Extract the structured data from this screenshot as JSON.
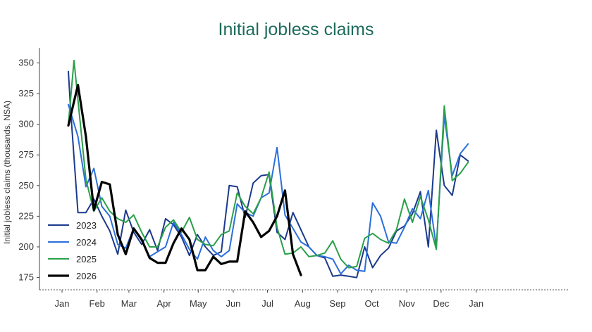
{
  "chart_data": {
    "type": "line",
    "title": "Initial jobless claims",
    "xlabel": "",
    "ylabel": "Initial jobless claims (thousands, NSA)",
    "ylim": [
      165,
      360
    ],
    "yticks": [
      175,
      200,
      225,
      250,
      275,
      300,
      325,
      350
    ],
    "xlim": [
      0,
      53
    ],
    "x_tick_labels": [
      "Jan",
      "Feb",
      "Mar",
      "Apr",
      "May",
      "Jun",
      "Jul",
      "Aug",
      "Sep",
      "Oct",
      "Nov",
      "Dec",
      "Jan"
    ],
    "x_tick_positions": [
      0,
      4.4,
      8.4,
      12.8,
      17.1,
      21.5,
      25.8,
      30.2,
      34.6,
      38.9,
      43.3,
      47.6,
      52
    ],
    "legend": "left",
    "series": [
      {
        "name": "2023",
        "color": "#1c3a8c",
        "width": 2,
        "x": [
          0.8,
          1.1,
          2,
          3,
          4,
          5,
          6,
          7,
          8,
          9,
          10,
          11,
          12,
          13,
          14,
          15,
          16,
          17,
          18,
          19,
          20,
          21,
          22,
          23,
          24,
          25,
          26,
          27,
          28,
          29,
          30,
          31,
          32,
          33,
          34,
          35,
          36,
          37,
          38,
          39,
          40,
          41,
          42,
          43,
          44,
          45,
          46,
          47,
          48,
          49,
          50,
          51,
          52
        ],
        "values": [
          343,
          310,
          228,
          228,
          239,
          225,
          213,
          194,
          230,
          212,
          202,
          214,
          197,
          223,
          218,
          208,
          193,
          210,
          200,
          193,
          196,
          250,
          249,
          224,
          252,
          258,
          259,
          212,
          206,
          228,
          214,
          200,
          193,
          191,
          176,
          177,
          176,
          175,
          200,
          183,
          193,
          199,
          213,
          217,
          227,
          245,
          200,
          295,
          250,
          242,
          275,
          270,
          null
        ]
      },
      {
        "name": "2024",
        "color": "#2a6fdb",
        "width": 2,
        "x": [
          0.8,
          2,
          3,
          4,
          5,
          6,
          7,
          8,
          9,
          10,
          11,
          12,
          13,
          14,
          15,
          16,
          17,
          18,
          19,
          20,
          21,
          22,
          23,
          24,
          25,
          26,
          27,
          28,
          29,
          30,
          31,
          32,
          33,
          34,
          35,
          36,
          37,
          38,
          39,
          40,
          41,
          42,
          43,
          44,
          45,
          46,
          47,
          48,
          49,
          50,
          51,
          52
        ],
        "values": [
          316,
          290,
          249,
          264,
          233,
          225,
          202,
          199,
          215,
          205,
          192,
          196,
          200,
          220,
          210,
          198,
          190,
          208,
          197,
          192,
          197,
          235,
          228,
          225,
          240,
          244,
          281,
          226,
          215,
          204,
          200,
          193,
          192,
          190,
          178,
          185,
          181,
          180,
          236,
          225,
          204,
          203,
          216,
          231,
          223,
          246,
          200,
          307,
          258,
          276,
          284,
          null
        ]
      },
      {
        "name": "2025",
        "color": "#2aa04a",
        "width": 2,
        "x": [
          0.8,
          1.5,
          3,
          4,
          5,
          6,
          7,
          8,
          9,
          10,
          11,
          12,
          13,
          14,
          15,
          16,
          17,
          18,
          19,
          20,
          21,
          22,
          23,
          24,
          25,
          26,
          27,
          28,
          29,
          30,
          31,
          32,
          33,
          34,
          35,
          36,
          37,
          38,
          39,
          40,
          41,
          42,
          43,
          44,
          45,
          46,
          47,
          48,
          49,
          50,
          51,
          52
        ],
        "values": [
          300,
          352,
          255,
          229,
          240,
          229,
          223,
          220,
          226,
          212,
          200,
          200,
          216,
          222,
          212,
          224,
          206,
          202,
          201,
          210,
          213,
          244,
          233,
          227,
          240,
          261,
          216,
          194,
          195,
          200,
          192,
          193,
          195,
          205,
          190,
          183,
          184,
          207,
          211,
          206,
          203,
          214,
          239,
          220,
          241,
          222,
          198,
          315,
          254,
          260,
          269,
          null
        ]
      },
      {
        "name": "2026",
        "color": "#000000",
        "width": 3.2,
        "x": [
          0.8,
          2,
          3,
          4,
          5,
          6,
          7,
          8,
          9,
          10,
          11,
          12,
          13,
          14,
          15,
          16,
          17,
          18,
          19,
          20,
          21,
          22,
          23,
          24,
          25,
          26,
          27,
          28,
          29,
          30
        ],
        "values": [
          299,
          332,
          290,
          230,
          253,
          251,
          210,
          194,
          215,
          206,
          191,
          187,
          187,
          203,
          215,
          206,
          181,
          181,
          192,
          186,
          188,
          188,
          229,
          220,
          208,
          213,
          225,
          246,
          194,
          177
        ]
      }
    ]
  }
}
